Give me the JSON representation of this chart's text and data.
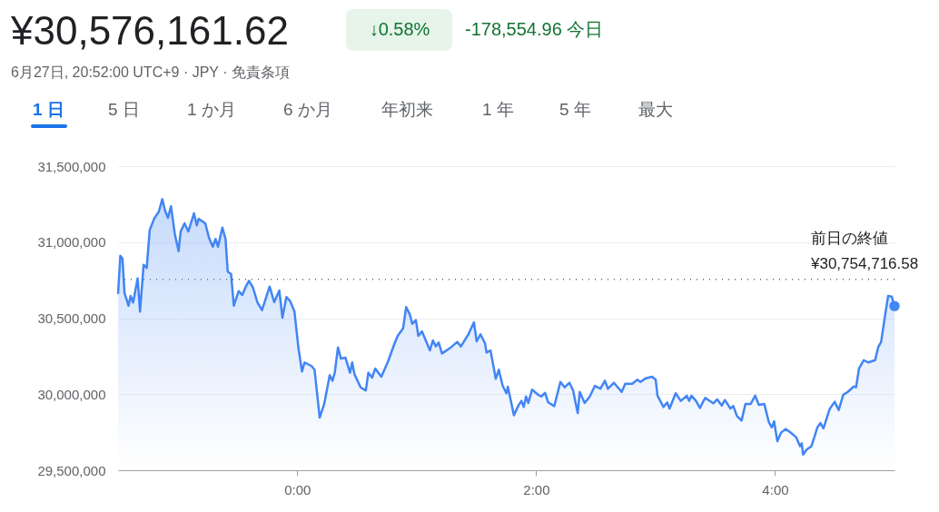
{
  "chart_data": {
    "type": "area",
    "title": "¥30,576,161.62",
    "subtitle": "6月27日, 20:52:00 UTC+9 · JPY · 免責条項",
    "annotations": [
      "↓0.58%",
      "-178,554.96 今日",
      "1 日",
      "5 日",
      "1 か月",
      "6 か月",
      "年初来",
      "1 年",
      "5 年",
      "最大"
    ],
    "series": [
      {
        "color": "#4285f4",
        "x": [
          -1.5,
          -1.481,
          -1.463,
          -1.446,
          -1.412,
          -1.395,
          -1.374,
          -1.336,
          -1.316,
          -1.286,
          -1.26,
          -1.235,
          -1.197,
          -1.159,
          -1.13,
          -1.107,
          -1.082,
          -1.057,
          -1.024,
          -0.993,
          -0.976,
          -0.943,
          -0.912,
          -0.864,
          -0.841,
          -0.825,
          -0.77,
          -0.739,
          -0.707,
          -0.684,
          -0.663,
          -0.627,
          -0.6,
          -0.582,
          -0.554,
          -0.531,
          -0.49,
          -0.46,
          -0.434,
          -0.404,
          -0.371,
          -0.333,
          -0.295,
          -0.231,
          -0.193,
          -0.15,
          -0.124,
          -0.091,
          -0.059,
          -0.023,
          0.01,
          0.04,
          0.061,
          0.12,
          0.145,
          0.188,
          0.226,
          0.272,
          0.295,
          0.315,
          0.341,
          0.366,
          0.404,
          0.442,
          0.46,
          0.48,
          0.531,
          0.574,
          0.595,
          0.627,
          0.653,
          0.704,
          0.76,
          0.81,
          0.841,
          0.886,
          0.912,
          0.943,
          0.963,
          0.993,
          1.014,
          1.044,
          1.111,
          1.136,
          1.161,
          1.184,
          1.212,
          1.28,
          1.339,
          1.37,
          1.433,
          1.479,
          1.502,
          1.534,
          1.572,
          1.585,
          1.618,
          1.662,
          1.687,
          1.72,
          1.751,
          1.763,
          1.814,
          1.852,
          1.877,
          1.896,
          1.915,
          1.934,
          1.966,
          2.018,
          2.043,
          2.075,
          2.101,
          2.152,
          2.203,
          2.239,
          2.279,
          2.309,
          2.348,
          2.365,
          2.406,
          2.449,
          2.492,
          2.538,
          2.576,
          2.601,
          2.652,
          2.716,
          2.746,
          2.805,
          2.848,
          2.873,
          2.919,
          2.97,
          3.001,
          3.016,
          3.066,
          3.097,
          3.117,
          3.168,
          3.211,
          3.262,
          3.28,
          3.3,
          3.338,
          3.371,
          3.415,
          3.483,
          3.516,
          3.554,
          3.58,
          3.626,
          3.651,
          3.681,
          3.72,
          3.752,
          3.796,
          3.834,
          3.864,
          3.91,
          3.948,
          3.973,
          3.992,
          4.019,
          4.05,
          4.088,
          4.126,
          4.177,
          4.21,
          4.223,
          4.235,
          4.266,
          4.304,
          4.329,
          4.354,
          4.38,
          4.405,
          4.457,
          4.499,
          4.533,
          4.571,
          4.609,
          4.659,
          4.678,
          4.703,
          4.743,
          4.779,
          4.838,
          4.863,
          4.888,
          4.922,
          4.947,
          4.977,
          5.0
        ],
        "values": [
          30660000,
          30911000,
          30891000,
          30666000,
          30582000,
          30646000,
          30603000,
          30762000,
          30543000,
          30851000,
          30831000,
          31080000,
          31156000,
          31200000,
          31283000,
          31209000,
          31160000,
          31236000,
          31050000,
          30941000,
          31070000,
          31124000,
          31070000,
          31190000,
          31110000,
          31154000,
          31124000,
          31030000,
          30970000,
          31021000,
          30970000,
          31096000,
          31021000,
          30806000,
          30791000,
          30582000,
          30678000,
          30652000,
          30702000,
          30746000,
          30702000,
          30603000,
          30553000,
          30708000,
          30606000,
          30682000,
          30503000,
          30639000,
          30612000,
          30543000,
          30304000,
          30149000,
          30209000,
          30185000,
          30161000,
          29846000,
          29936000,
          30125000,
          30089000,
          30145000,
          30308000,
          30234000,
          30240000,
          30141000,
          30209000,
          30129000,
          30045000,
          30025000,
          30141000,
          30109000,
          30169000,
          30115000,
          30215000,
          30324000,
          30384000,
          30433000,
          30573000,
          30523000,
          30463000,
          30487000,
          30384000,
          30413000,
          30288000,
          30354000,
          30314000,
          30340000,
          30268000,
          30304000,
          30344000,
          30314000,
          30394000,
          30473000,
          30348000,
          30394000,
          30334000,
          30274000,
          30288000,
          30101000,
          30161000,
          30055000,
          30006000,
          30049000,
          29862000,
          29926000,
          29956000,
          29916000,
          29985000,
          29942000,
          30030000,
          29996000,
          29985000,
          30009000,
          29946000,
          29922000,
          30081000,
          30045000,
          30075000,
          30025000,
          29876000,
          30015000,
          29942000,
          29985000,
          30055000,
          30036000,
          30089000,
          30036000,
          30075000,
          30015000,
          30069000,
          30069000,
          30095000,
          30081000,
          30105000,
          30115000,
          30095000,
          29990000,
          29916000,
          29946000,
          29906000,
          30006000,
          29956000,
          29990000,
          29956000,
          29990000,
          29956000,
          29910000,
          29976000,
          29940000,
          29966000,
          29926000,
          29962000,
          29906000,
          29922000,
          29856000,
          29827000,
          29936000,
          29936000,
          29990000,
          29930000,
          29936000,
          29816000,
          29782000,
          29822000,
          29691000,
          29747000,
          29771000,
          29751000,
          29717000,
          29657000,
          29677000,
          29603000,
          29637000,
          29657000,
          29717000,
          29782000,
          29810000,
          29776000,
          29902000,
          29950000,
          29896000,
          29996000,
          30015000,
          30051000,
          30045000,
          30169000,
          30224000,
          30209000,
          30224000,
          30308000,
          30344000,
          30523000,
          30646000,
          30642000,
          30580000
        ]
      }
    ],
    "xlim": [
      -1.5,
      5.0
    ],
    "xticks": [
      {
        "value": 0,
        "label": "0:00"
      },
      {
        "value": 2,
        "label": "2:00"
      },
      {
        "value": 4,
        "label": "4:00"
      }
    ],
    "ylim": [
      29500000,
      31500000
    ],
    "yticks": [
      {
        "value": 29500000,
        "label": "29,500,000"
      },
      {
        "value": 30000000,
        "label": "30,000,000"
      },
      {
        "value": 30500000,
        "label": "30,500,000"
      },
      {
        "value": 31000000,
        "label": "31,000,000"
      },
      {
        "value": 31500000,
        "label": "31,500,000"
      }
    ],
    "grid": "y",
    "ref_lines": [
      {
        "axis": "y",
        "value": 30754716.58,
        "label": "前日の終値\n¥30,754,716.58",
        "color": "#5f6368",
        "line_style": "dotted"
      }
    ]
  }
}
